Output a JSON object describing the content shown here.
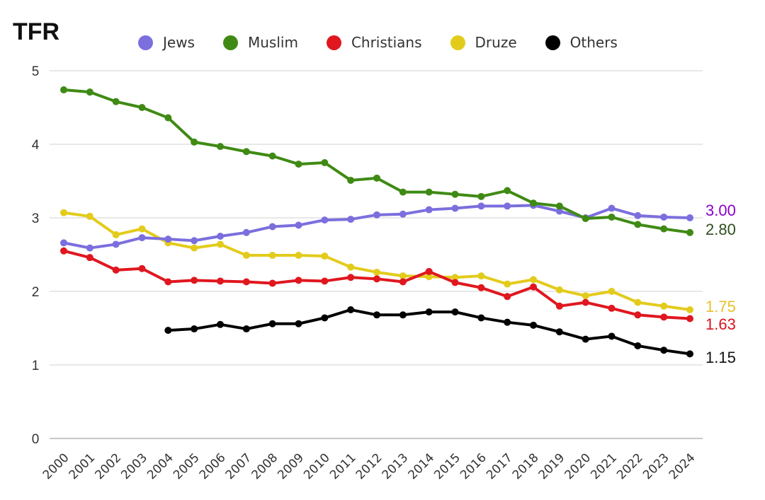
{
  "chart_data": {
    "type": "line",
    "title": "TFR",
    "xlabel": "",
    "ylabel": "",
    "ylim": [
      0,
      5
    ],
    "yticks": [
      "0",
      "1",
      "2",
      "3",
      "4",
      "5"
    ],
    "grid": true,
    "legend_position": "top",
    "x": [
      "2000",
      "2001",
      "2002",
      "2003",
      "2004",
      "2005",
      "2006",
      "2007",
      "2008",
      "2009",
      "2010",
      "2011",
      "2012",
      "2013",
      "2014",
      "2015",
      "2016",
      "2017",
      "2018",
      "2019",
      "2020",
      "2021",
      "2022",
      "2023",
      "2024"
    ],
    "series": [
      {
        "name": "Jews",
        "color": "#7b6fde",
        "label_color": "#8a00c8",
        "end_label": "3.00",
        "values": [
          2.66,
          2.59,
          2.64,
          2.73,
          2.71,
          2.69,
          2.75,
          2.8,
          2.88,
          2.9,
          2.97,
          2.98,
          3.04,
          3.05,
          3.11,
          3.13,
          3.16,
          3.16,
          3.17,
          3.09,
          3.0,
          3.13,
          3.03,
          3.01,
          3.0
        ]
      },
      {
        "name": "Muslim",
        "color": "#3f8a14",
        "label_color": "#2f4f1f",
        "end_label": "2.80",
        "values": [
          4.74,
          4.71,
          4.58,
          4.5,
          4.36,
          4.03,
          3.97,
          3.9,
          3.84,
          3.73,
          3.75,
          3.51,
          3.54,
          3.35,
          3.35,
          3.32,
          3.29,
          3.37,
          3.2,
          3.16,
          2.99,
          3.01,
          2.91,
          2.85,
          2.8
        ]
      },
      {
        "name": "Christians",
        "color": "#e0171f",
        "label_color": "#d9141c",
        "end_label": "1.63",
        "values": [
          2.55,
          2.46,
          2.29,
          2.31,
          2.13,
          2.15,
          2.14,
          2.13,
          2.11,
          2.15,
          2.14,
          2.19,
          2.17,
          2.13,
          2.27,
          2.12,
          2.05,
          1.93,
          2.06,
          1.8,
          1.85,
          1.77,
          1.68,
          1.65,
          1.63
        ]
      },
      {
        "name": "Druze",
        "color": "#e3cb1c",
        "label_color": "#e8c02a",
        "end_label": "1.75",
        "values": [
          3.07,
          3.02,
          2.77,
          2.85,
          2.66,
          2.59,
          2.64,
          2.49,
          2.49,
          2.49,
          2.48,
          2.33,
          2.26,
          2.21,
          2.2,
          2.19,
          2.21,
          2.1,
          2.16,
          2.02,
          1.94,
          2.0,
          1.85,
          1.8,
          1.75
        ]
      },
      {
        "name": "Others",
        "color": "#000000",
        "label_color": "#111111",
        "end_label": "1.15",
        "values": [
          null,
          null,
          null,
          null,
          1.47,
          1.49,
          1.55,
          1.49,
          1.56,
          1.56,
          1.64,
          1.75,
          1.68,
          1.68,
          1.72,
          1.72,
          1.64,
          1.58,
          1.54,
          1.45,
          1.35,
          1.39,
          1.26,
          1.2,
          1.15
        ]
      }
    ]
  }
}
